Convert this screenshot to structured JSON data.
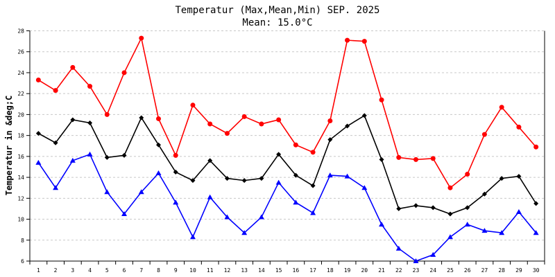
{
  "chart_data": {
    "type": "line",
    "title": "Temperatur (Max,Mean,Min) SEP. 2025",
    "subtitle": "Mean: 15.0°C",
    "xlabel": "",
    "ylabel": "Temperatur in &deg;C",
    "ylim": [
      6,
      28
    ],
    "yticks": [
      "6",
      "8",
      "10",
      "12",
      "14",
      "16",
      "18",
      "20",
      "22",
      "24",
      "26",
      "28"
    ],
    "grid": true,
    "categories": [
      "1",
      "2",
      "3",
      "4",
      "5",
      "6",
      "7",
      "8",
      "9",
      "10",
      "11",
      "12",
      "13",
      "14",
      "15",
      "16",
      "17",
      "18",
      "19",
      "20",
      "21",
      "22",
      "23",
      "24",
      "25",
      "26",
      "27",
      "28",
      "29",
      "30"
    ],
    "series": [
      {
        "key": "max",
        "color": "#ff0000",
        "marker": "circle",
        "values": [
          23.3,
          22.3,
          24.5,
          22.7,
          20.0,
          24.0,
          27.3,
          19.6,
          16.1,
          20.9,
          19.1,
          18.2,
          19.8,
          19.1,
          19.5,
          17.1,
          16.4,
          19.4,
          27.1,
          27.0,
          21.4,
          15.9,
          15.7,
          15.8,
          13.0,
          14.3,
          18.1,
          20.7,
          18.8,
          16.9
        ]
      },
      {
        "key": "mean",
        "color": "#000000",
        "marker": "diamond",
        "values": [
          18.2,
          17.3,
          19.5,
          19.2,
          15.9,
          16.1,
          19.7,
          17.1,
          14.5,
          13.7,
          15.6,
          13.9,
          13.7,
          13.9,
          16.2,
          14.2,
          13.2,
          17.6,
          18.9,
          19.9,
          15.7,
          11.0,
          11.3,
          11.1,
          10.5,
          11.1,
          12.4,
          13.9,
          14.1,
          11.5
        ]
      },
      {
        "key": "min",
        "color": "#0000ff",
        "marker": "triangle",
        "values": [
          15.4,
          13.0,
          15.6,
          16.2,
          12.6,
          10.5,
          12.6,
          14.4,
          11.6,
          8.3,
          12.1,
          10.2,
          8.7,
          10.2,
          13.5,
          11.6,
          10.6,
          14.2,
          14.1,
          13.0,
          9.5,
          7.2,
          6.0,
          6.6,
          8.3,
          9.5,
          8.9,
          8.7,
          10.7,
          8.7
        ]
      }
    ]
  }
}
